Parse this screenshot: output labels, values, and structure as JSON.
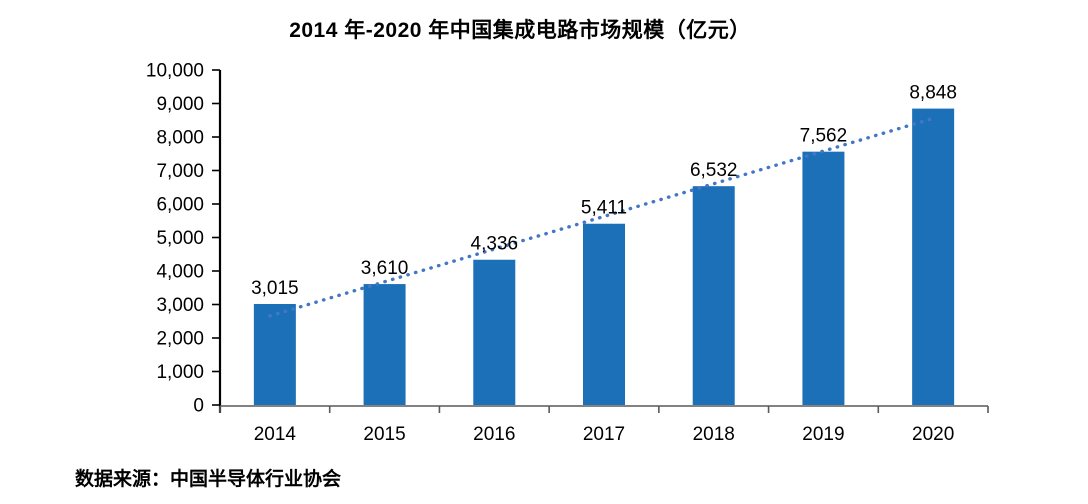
{
  "title": "2014 年-2020 年中国集成电路市场规模（亿元）",
  "source_note": "数据来源：中国半导体行业协会",
  "chart_data": {
    "type": "bar",
    "title": "2014 年-2020 年中国集成电路市场规模（亿元）",
    "categories": [
      "2014",
      "2015",
      "2016",
      "2017",
      "2018",
      "2019",
      "2020"
    ],
    "values": [
      3015,
      3610,
      4336,
      5411,
      6532,
      7562,
      8848
    ],
    "data_labels": [
      "3,015",
      "3,610",
      "4,336",
      "5,411",
      "6,532",
      "7,562",
      "8,848"
    ],
    "xlabel": "",
    "ylabel": "",
    "ylim": [
      0,
      10000
    ],
    "y_tick_step": 1000,
    "y_tick_labels": [
      "0",
      "1,000",
      "2,000",
      "3,000",
      "4,000",
      "5,000",
      "6,000",
      "7,000",
      "8,000",
      "9,000",
      "10,000"
    ],
    "grid": false,
    "legend": false,
    "bar_color": "#1C70B8",
    "trendline": {
      "type": "linear",
      "style": "dotted",
      "color": "#4377C6"
    },
    "axis_color": "#000000",
    "x_axis_color": "#595959",
    "source": "数据来源：中国半导体行业协会"
  }
}
